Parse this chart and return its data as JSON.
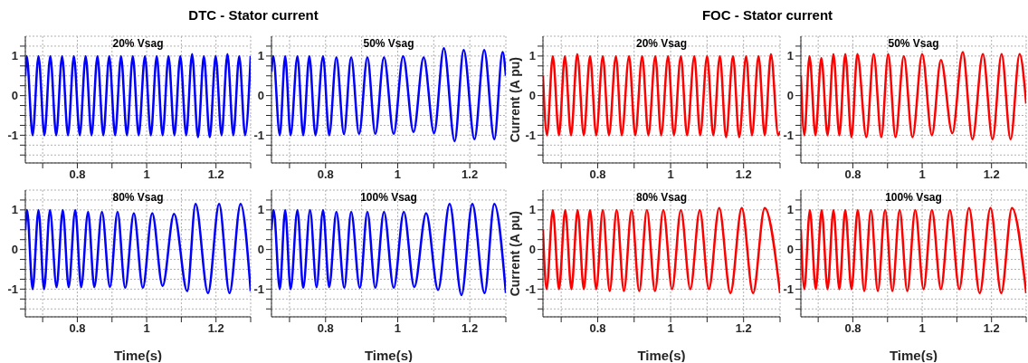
{
  "chart_data": [
    {
      "type": "line",
      "title": "DTC - Stator current",
      "subtitle": "20% Vsag",
      "xlim": [
        0.65,
        1.3
      ],
      "ylim": [
        -1.7,
        1.5
      ],
      "xticks": [
        {
          "value": 0.7,
          "label": null
        },
        0.8,
        {
          "value": 0.9,
          "label": null
        },
        1,
        {
          "value": 1.1,
          "label": null
        },
        1.2,
        {
          "value": 1.3,
          "label": null
        }
      ],
      "yticks": [
        {
          "value": -1.5,
          "label": null
        },
        {
          "value": -1.25,
          "label": null
        },
        -1,
        {
          "value": -0.75,
          "label": null
        },
        {
          "value": -0.5,
          "label": null
        },
        {
          "value": -0.25,
          "label": null
        },
        0,
        {
          "value": 0.25,
          "label": null
        },
        {
          "value": 0.5,
          "label": null
        },
        {
          "value": 0.75,
          "label": null
        },
        1,
        {
          "value": 1.25,
          "label": null
        }
      ],
      "grid": true,
      "series": [
        {
          "color": "#0000ff",
          "x": [
            0.65,
            0.654,
            0.671,
            0.688,
            0.705,
            0.722,
            0.739,
            0.756,
            0.773,
            0.79,
            0.807,
            0.824,
            0.841,
            0.858,
            0.875,
            0.892,
            0.909,
            0.926,
            0.943,
            0.96,
            0.977,
            0.995,
            1.012,
            1.029,
            1.046,
            1.063,
            1.08,
            1.097,
            1.114,
            1.131,
            1.148,
            1.165,
            1.182,
            1.199,
            1.216,
            1.233,
            1.25,
            1.267,
            1.284,
            1.3
          ],
          "values": [
            0.5,
            1,
            -1,
            1,
            -1,
            1,
            -1,
            1,
            -1,
            1,
            -1,
            1,
            -1,
            1,
            -1,
            1,
            -1,
            1,
            -1,
            1,
            -1,
            1,
            -1,
            1,
            -1,
            1,
            -1,
            1,
            -1,
            1.05,
            -1.05,
            1,
            -1.05,
            1,
            -1,
            1.05,
            -1,
            1,
            -1,
            1
          ]
        }
      ]
    },
    {
      "type": "line",
      "subtitle": "50% Vsag",
      "xlim": [
        0.65,
        1.3
      ],
      "ylim": [
        -1.7,
        1.5
      ],
      "xticks": [
        {
          "value": 0.7,
          "label": null
        },
        0.8,
        {
          "value": 0.9,
          "label": null
        },
        1,
        {
          "value": 1.1,
          "label": null
        },
        1.2,
        {
          "value": 1.3,
          "label": null
        }
      ],
      "yticks": [
        {
          "value": -1.5,
          "label": null
        },
        {
          "value": -1.25,
          "label": null
        },
        -1,
        {
          "value": -0.75,
          "label": null
        },
        {
          "value": -0.5,
          "label": null
        },
        {
          "value": -0.25,
          "label": null
        },
        0,
        {
          "value": 0.25,
          "label": null
        },
        {
          "value": 0.5,
          "label": null
        },
        {
          "value": 0.75,
          "label": null
        },
        1,
        {
          "value": 1.25,
          "label": null
        }
      ],
      "grid": true,
      "series": [
        {
          "color": "#0000ff",
          "x": [
            0.65,
            0.655,
            0.673,
            0.688,
            0.703,
            0.722,
            0.738,
            0.755,
            0.772,
            0.793,
            0.81,
            0.83,
            0.851,
            0.871,
            0.893,
            0.916,
            0.938,
            0.962,
            0.989,
            1.015,
            1.044,
            1.072,
            1.101,
            1.128,
            1.158,
            1.183,
            1.213,
            1.24,
            1.268,
            1.291,
            1.3
          ],
          "values": [
            0.6,
            1,
            -1,
            1,
            -1,
            1,
            -1,
            1,
            -1,
            1,
            -1,
            0.97,
            -0.97,
            0.97,
            -0.97,
            0.97,
            -0.97,
            0.97,
            -0.97,
            1,
            -0.92,
            0.97,
            -0.95,
            1.2,
            -1.15,
            1.15,
            -1.1,
            1.15,
            -1.1,
            1.1,
            0.5
          ]
        }
      ]
    },
    {
      "type": "line",
      "subtitle": "80% Vsag",
      "xlabel": "Time(s)",
      "xlim": [
        0.65,
        1.3
      ],
      "ylim": [
        -1.7,
        1.5
      ],
      "xticks": [
        {
          "value": 0.7,
          "label": null
        },
        0.8,
        {
          "value": 0.9,
          "label": null
        },
        1,
        {
          "value": 1.1,
          "label": null
        },
        1.2,
        {
          "value": 1.3,
          "label": null
        }
      ],
      "yticks": [
        {
          "value": -1.5,
          "label": null
        },
        {
          "value": -1.25,
          "label": null
        },
        -1,
        {
          "value": -0.75,
          "label": null
        },
        {
          "value": -0.5,
          "label": null
        },
        {
          "value": -0.25,
          "label": null
        },
        0,
        {
          "value": 0.25,
          "label": null
        },
        {
          "value": 0.5,
          "label": null
        },
        {
          "value": 0.75,
          "label": null
        },
        1,
        {
          "value": 1.25,
          "label": null
        }
      ],
      "grid": true,
      "series": [
        {
          "color": "#0000ff",
          "x": [
            0.65,
            0.655,
            0.671,
            0.688,
            0.704,
            0.721,
            0.74,
            0.758,
            0.775,
            0.794,
            0.811,
            0.831,
            0.849,
            0.871,
            0.894,
            0.916,
            0.938,
            0.963,
            0.989,
            1.016,
            1.046,
            1.079,
            1.117,
            1.141,
            1.177,
            1.209,
            1.239,
            1.271,
            1.3
          ],
          "values": [
            0.5,
            1,
            -1,
            1,
            -1,
            1,
            -0.95,
            1,
            -0.95,
            1,
            -0.95,
            0.95,
            -0.95,
            0.95,
            -0.95,
            0.95,
            -0.97,
            0.92,
            -0.97,
            0.92,
            -0.92,
            0.9,
            -1.05,
            1.15,
            -1.1,
            1.15,
            -1.1,
            1.15,
            -1.05
          ]
        }
      ]
    },
    {
      "type": "line",
      "subtitle": "100% Vsag",
      "xlabel": "Time(s)",
      "xlim": [
        0.65,
        1.3
      ],
      "ylim": [
        -1.7,
        1.5
      ],
      "xticks": [
        {
          "value": 0.7,
          "label": null
        },
        0.8,
        {
          "value": 0.9,
          "label": null
        },
        1,
        {
          "value": 1.1,
          "label": null
        },
        1.2,
        {
          "value": 1.3,
          "label": null
        }
      ],
      "yticks": [
        {
          "value": -1.5,
          "label": null
        },
        {
          "value": -1.25,
          "label": null
        },
        -1,
        {
          "value": -0.75,
          "label": null
        },
        {
          "value": -0.5,
          "label": null
        },
        {
          "value": -0.25,
          "label": null
        },
        0,
        {
          "value": 0.25,
          "label": null
        },
        {
          "value": 0.5,
          "label": null
        },
        {
          "value": 0.75,
          "label": null
        },
        1,
        {
          "value": 1.25,
          "label": null
        }
      ],
      "grid": true,
      "series": [
        {
          "color": "#0000ff",
          "x": [
            0.65,
            0.656,
            0.673,
            0.688,
            0.703,
            0.722,
            0.738,
            0.757,
            0.775,
            0.793,
            0.81,
            0.83,
            0.852,
            0.871,
            0.895,
            0.916,
            0.938,
            0.962,
            0.989,
            1.017,
            1.046,
            1.079,
            1.112,
            1.144,
            1.177,
            1.207,
            1.241,
            1.268,
            1.3
          ],
          "values": [
            0.5,
            1,
            -1,
            1,
            -1,
            1,
            -0.97,
            1,
            -0.95,
            1,
            -0.95,
            0.95,
            -0.97,
            0.95,
            -0.97,
            0.95,
            -0.97,
            0.95,
            -0.97,
            0.95,
            -0.95,
            0.92,
            -1.02,
            1.15,
            -1.15,
            1.15,
            -1.1,
            1.15,
            -1.1
          ]
        }
      ]
    },
    {
      "type": "line",
      "title": "FOC - Stator current",
      "subtitle": "20% Vsag",
      "ylabel": "Current (A pu)",
      "xlim": [
        0.65,
        1.3
      ],
      "ylim": [
        -1.7,
        1.5
      ],
      "xticks": [
        {
          "value": 0.7,
          "label": null
        },
        0.8,
        {
          "value": 0.9,
          "label": null
        },
        1,
        {
          "value": 1.1,
          "label": null
        },
        1.2,
        {
          "value": 1.3,
          "label": null
        }
      ],
      "yticks": [
        {
          "value": -1.5,
          "label": null
        },
        {
          "value": -1.25,
          "label": null
        },
        -1,
        {
          "value": -0.75,
          "label": null
        },
        {
          "value": -0.5,
          "label": null
        },
        {
          "value": -0.25,
          "label": null
        },
        0,
        {
          "value": 0.25,
          "label": null
        },
        {
          "value": 0.5,
          "label": null
        },
        {
          "value": 0.75,
          "label": null
        },
        1,
        {
          "value": 1.25,
          "label": null
        }
      ],
      "grid": true,
      "series": [
        {
          "color": "#ff0000",
          "x": [
            0.65,
            0.661,
            0.677,
            0.694,
            0.71,
            0.727,
            0.744,
            0.762,
            0.779,
            0.796,
            0.814,
            0.831,
            0.85,
            0.866,
            0.886,
            0.903,
            0.922,
            0.939,
            0.958,
            0.974,
            0.993,
            1.009,
            1.028,
            1.045,
            1.065,
            1.081,
            1.1,
            1.117,
            1.135,
            1.152,
            1.171,
            1.188,
            1.207,
            1.223,
            1.241,
            1.258,
            1.275,
            1.295,
            1.3
          ],
          "values": [
            0.5,
            -1,
            1,
            -1,
            1,
            -1,
            1.05,
            -1,
            1,
            -1,
            1,
            -1,
            1,
            -1,
            1,
            -1,
            1,
            -1,
            1,
            -1,
            1,
            -1,
            1,
            -1,
            1,
            -1,
            1,
            -1,
            1,
            -1.05,
            1,
            -1.05,
            1,
            -1,
            1,
            -1,
            1.05,
            -1,
            -0.9
          ]
        }
      ]
    },
    {
      "type": "line",
      "subtitle": "50% Vsag",
      "xlim": [
        0.65,
        1.3
      ],
      "ylim": [
        -1.7,
        1.5
      ],
      "xticks": [
        {
          "value": 0.7,
          "label": null
        },
        0.8,
        {
          "value": 0.9,
          "label": null
        },
        1,
        {
          "value": 1.1,
          "label": null
        },
        1.2,
        {
          "value": 1.3,
          "label": null
        }
      ],
      "yticks": [
        {
          "value": -1.5,
          "label": null
        },
        {
          "value": -1.25,
          "label": null
        },
        -1,
        {
          "value": -0.75,
          "label": null
        },
        {
          "value": -0.5,
          "label": null
        },
        {
          "value": -0.25,
          "label": null
        },
        0,
        {
          "value": 0.25,
          "label": null
        },
        {
          "value": 0.5,
          "label": null
        },
        {
          "value": 0.75,
          "label": null
        },
        1,
        {
          "value": 1.25,
          "label": null
        }
      ],
      "grid": true,
      "series": [
        {
          "color": "#ff0000",
          "x": [
            0.65,
            0.66,
            0.675,
            0.692,
            0.709,
            0.727,
            0.744,
            0.761,
            0.778,
            0.796,
            0.813,
            0.839,
            0.86,
            0.882,
            0.902,
            0.923,
            0.947,
            0.972,
            1.0,
            1.028,
            1.054,
            1.087,
            1.117,
            1.145,
            1.175,
            1.203,
            1.229,
            1.255,
            1.281,
            1.3
          ],
          "values": [
            0.5,
            -1,
            1,
            -1,
            0.95,
            -1,
            1.05,
            -1,
            1.05,
            -1.05,
            1.05,
            -1.05,
            1.05,
            -1.05,
            1.05,
            -1.05,
            1,
            -1.05,
            1.05,
            -1,
            0.9,
            -0.95,
            1.1,
            -1.1,
            1.05,
            -1.1,
            1.05,
            -1.1,
            1.05,
            -0.2
          ]
        }
      ]
    },
    {
      "type": "line",
      "subtitle": "80% Vsag",
      "xlabel": "Time(s)",
      "ylabel": "Current (A pu)",
      "xlim": [
        0.65,
        1.3
      ],
      "ylim": [
        -1.7,
        1.5
      ],
      "xticks": [
        {
          "value": 0.7,
          "label": null
        },
        0.8,
        {
          "value": 0.9,
          "label": null
        },
        1,
        {
          "value": 1.1,
          "label": null
        },
        1.2,
        {
          "value": 1.3,
          "label": null
        }
      ],
      "yticks": [
        {
          "value": -1.5,
          "label": null
        },
        {
          "value": -1.25,
          "label": null
        },
        -1,
        {
          "value": -0.75,
          "label": null
        },
        {
          "value": -0.5,
          "label": null
        },
        {
          "value": -0.25,
          "label": null
        },
        0,
        {
          "value": 0.25,
          "label": null
        },
        {
          "value": 0.5,
          "label": null
        },
        {
          "value": 0.75,
          "label": null
        },
        1,
        {
          "value": 1.25,
          "label": null
        }
      ],
      "grid": true,
      "series": [
        {
          "color": "#ff0000",
          "x": [
            0.65,
            0.66,
            0.677,
            0.694,
            0.711,
            0.728,
            0.745,
            0.762,
            0.779,
            0.796,
            0.814,
            0.833,
            0.852,
            0.872,
            0.893,
            0.914,
            0.935,
            0.957,
            0.98,
            1.004,
            1.028,
            1.054,
            1.08,
            1.105,
            1.133,
            1.164,
            1.195,
            1.226,
            1.258,
            1.3
          ],
          "values": [
            0.5,
            -1,
            1,
            -1,
            1,
            -1,
            1,
            -1,
            1,
            -1,
            1,
            -1.05,
            1,
            -1.05,
            1,
            -1.05,
            1,
            -1.05,
            1,
            -1,
            1,
            -1,
            1,
            -1,
            1.05,
            -1.1,
            1.05,
            -1.1,
            1.05,
            -1.1
          ]
        }
      ]
    },
    {
      "type": "line",
      "subtitle": "100% Vsag",
      "xlabel": "Time(s)",
      "xlim": [
        0.65,
        1.3
      ],
      "ylim": [
        -1.7,
        1.5
      ],
      "xticks": [
        {
          "value": 0.7,
          "label": null
        },
        0.8,
        {
          "value": 0.9,
          "label": null
        },
        1,
        {
          "value": 1.1,
          "label": null
        },
        1.2,
        {
          "value": 1.3,
          "label": null
        }
      ],
      "yticks": [
        {
          "value": -1.5,
          "label": null
        },
        {
          "value": -1.25,
          "label": null
        },
        -1,
        {
          "value": -0.75,
          "label": null
        },
        {
          "value": -0.5,
          "label": null
        },
        {
          "value": -0.25,
          "label": null
        },
        0,
        {
          "value": 0.25,
          "label": null
        },
        {
          "value": 0.5,
          "label": null
        },
        {
          "value": 0.75,
          "label": null
        },
        1,
        {
          "value": 1.25,
          "label": null
        }
      ],
      "grid": true,
      "series": [
        {
          "color": "#ff0000",
          "x": [
            0.65,
            0.66,
            0.676,
            0.693,
            0.71,
            0.727,
            0.744,
            0.761,
            0.778,
            0.796,
            0.814,
            0.833,
            0.852,
            0.872,
            0.893,
            0.914,
            0.935,
            0.957,
            0.98,
            1.004,
            1.028,
            1.054,
            1.08,
            1.107,
            1.135,
            1.166,
            1.197,
            1.228,
            1.259,
            1.3
          ],
          "values": [
            0.5,
            -1,
            1,
            -1,
            1,
            -1,
            1,
            -1,
            1,
            -1,
            1,
            -1.05,
            1,
            -1.05,
            1,
            -1.05,
            1,
            -1.05,
            1,
            -1,
            1,
            -1,
            1,
            -1,
            1.05,
            -1.1,
            1.05,
            -1.1,
            1.05,
            -1.1
          ]
        }
      ]
    }
  ]
}
